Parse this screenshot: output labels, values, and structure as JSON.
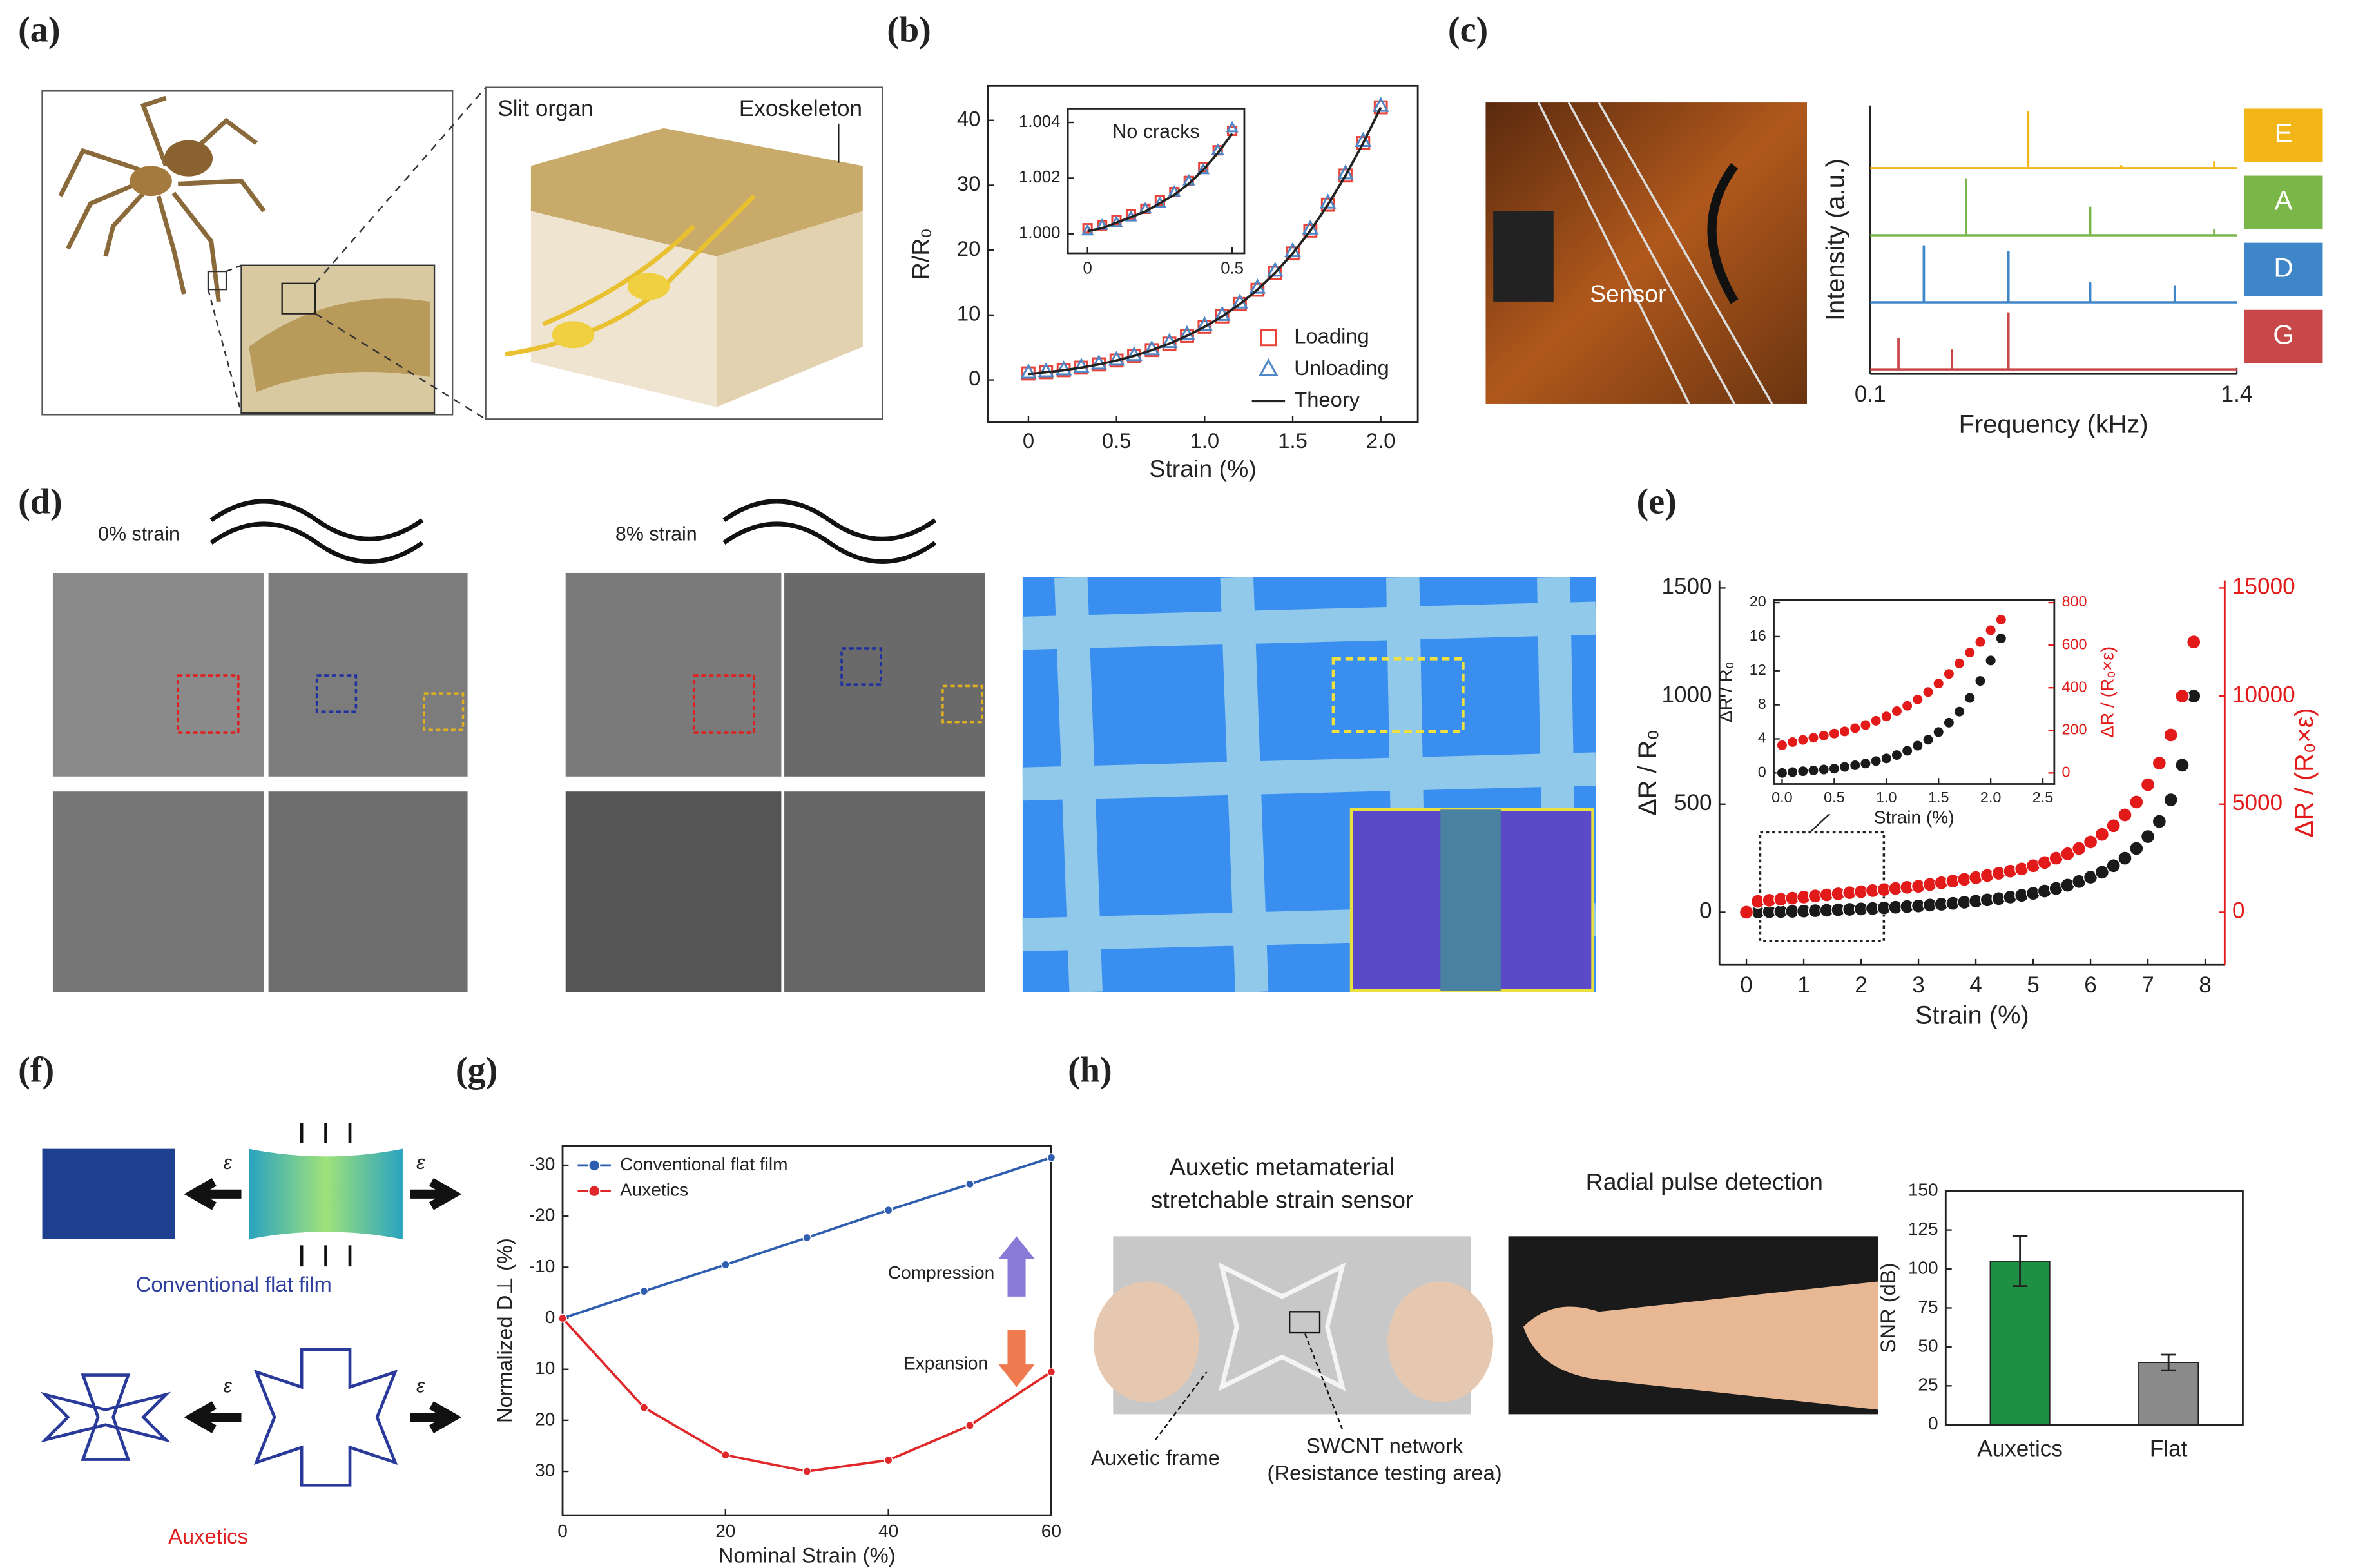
{
  "panel_labels": [
    "(a)",
    "(b)",
    "(c)",
    "(d)",
    "(e)",
    "(f)",
    "(g)",
    "(h)"
  ],
  "annotations": {
    "slit_organ": "Slit organ",
    "exoskeleton": "Exoskeleton",
    "sensor": "Sensor",
    "strain_0": "0% strain",
    "strain_8": "8% strain",
    "conventional": "Conventional flat film",
    "auxetics": "Auxetics",
    "epsilon": "ε",
    "compression": "Compression",
    "expansion": "Expansion",
    "sensor_title": [
      "Auxetic metamaterial",
      "stretchable strain sensor"
    ],
    "pulse": "Radial pulse detection",
    "frame": "Auxetic frame",
    "network": [
      "SWCNT network",
      "(Resistance testing area)"
    ]
  },
  "chart_data": [
    {
      "type": "line",
      "xlabel": "Strain (%)",
      "ylabel": "R/R₀",
      "x": [
        0,
        0.1,
        0.2,
        0.3,
        0.4,
        0.5,
        0.6,
        0.7,
        0.8,
        0.9,
        1,
        1.1,
        1.2,
        1.3,
        1.4,
        1.5,
        1.6,
        1.7,
        1.8,
        1.9,
        2
      ],
      "xlim": [
        -0.23,
        2.21
      ],
      "xticks": [
        0,
        0.5,
        {
          "value": 1,
          "label": "1.0"
        },
        1.5,
        {
          "value": 2,
          "label": "2.0"
        }
      ],
      "ylim": [
        -6.5,
        45.3
      ],
      "yticks": [
        0,
        10,
        20,
        30,
        40
      ],
      "legend": "lower right",
      "series": [
        {
          "name": "Loading",
          "color": "#e8443a",
          "marker": "square",
          "values": [
            1,
            1.2,
            1.5,
            1.9,
            2.4,
            3,
            3.7,
            4.6,
            5.6,
            6.8,
            8.2,
            9.8,
            11.7,
            13.9,
            16.5,
            19.5,
            23,
            27,
            31.5,
            36.5,
            42
          ]
        },
        {
          "name": "Unloading",
          "color": "#4f86c6",
          "marker": "triangle",
          "values": [
            1.1,
            1.3,
            1.6,
            2,
            2.5,
            3.1,
            3.8,
            4.7,
            5.8,
            7,
            8.4,
            10,
            11.9,
            14.2,
            16.8,
            19.8,
            23.3,
            27.3,
            31.8,
            36.8,
            42.2
          ]
        },
        {
          "name": "Theory",
          "color": "#222222",
          "marker": "none",
          "line": true,
          "values": [
            0.9,
            1.2,
            1.5,
            1.9,
            2.4,
            3,
            3.7,
            4.6,
            5.6,
            6.8,
            8.2,
            9.8,
            11.7,
            13.9,
            16.5,
            19.5,
            23,
            27,
            31.5,
            36.5,
            42
          ]
        }
      ]
    },
    {
      "type": "line",
      "title": "No cracks",
      "x": [
        0,
        0.05,
        0.1,
        0.15,
        0.2,
        0.25,
        0.3,
        0.35,
        0.4,
        0.45,
        0.5
      ],
      "xlim": [
        -0.068,
        0.542
      ],
      "xticks": [
        0,
        0.5
      ],
      "ylim": [
        0.9993,
        1.0045
      ],
      "yticks": [
        {
          "value": 1,
          "label": "1.000"
        },
        {
          "value": 1.002,
          "label": "1.002"
        },
        {
          "value": 1.004,
          "label": "1.004"
        }
      ],
      "series": [
        {
          "color": "#e8443a",
          "marker": "square",
          "values": [
            1.0002,
            1.0003,
            1.0005,
            1.0007,
            1.0009,
            1.0012,
            1.0015,
            1.0019,
            1.0024,
            1.003,
            1.0037
          ]
        },
        {
          "color": "#4f86c6",
          "marker": "triangle",
          "values": [
            1.0001,
            1.0003,
            1.0004,
            1.0006,
            1.0009,
            1.0011,
            1.0015,
            1.0019,
            1.0023,
            1.003,
            1.0038
          ]
        },
        {
          "color": "#222222",
          "marker": "none",
          "line": true,
          "values": [
            1.0001,
            1.0002,
            1.0004,
            1.0006,
            1.0008,
            1.0011,
            1.0014,
            1.0018,
            1.0023,
            1.0029,
            1.0036
          ]
        }
      ]
    },
    {
      "type": "spectrum",
      "xlabel": "Frequency (kHz)",
      "ylabel": "Intensity (a.u.)",
      "xlim": [
        0.1,
        1.4
      ],
      "xticks": [
        0.1,
        1.4
      ],
      "series": [
        {
          "name": "E",
          "color": "#f2b619",
          "x": [
            0.66,
            0.99,
            1.32
          ],
          "values": [
            1,
            0.05,
            0.12
          ]
        },
        {
          "name": "A",
          "color": "#7ab648",
          "x": [
            0.44,
            0.88,
            1.32
          ],
          "values": [
            1,
            0.5,
            0.1
          ]
        },
        {
          "name": "D",
          "color": "#3f86c8",
          "x": [
            0.29,
            0.59,
            0.88,
            1.18
          ],
          "values": [
            1,
            0.9,
            0.35,
            0.3
          ]
        },
        {
          "name": "G",
          "color": "#c8484a",
          "x": [
            0.2,
            0.39,
            0.59
          ],
          "values": [
            0.55,
            0.35,
            1
          ]
        }
      ]
    },
    {
      "type": "line",
      "xlabel": "Strain (%)",
      "ylabel": "ΔR / R₀",
      "y2label": "ΔR / (R₀×ε)",
      "x": [
        0,
        0.2,
        0.4,
        0.6,
        0.8,
        1,
        1.2,
        1.4,
        1.6,
        1.8,
        2,
        2.2,
        2.4,
        2.6,
        2.8,
        3,
        3.2,
        3.4,
        3.6,
        3.8,
        4,
        4.2,
        4.4,
        4.6,
        4.8,
        5,
        5.2,
        5.4,
        5.6,
        5.8,
        6,
        6.2,
        6.4,
        6.6,
        6.8,
        7,
        7.2,
        7.4,
        7.6,
        7.8
      ],
      "xlim": [
        -0.47,
        8.34
      ],
      "xticks": [
        0,
        1,
        2,
        3,
        4,
        5,
        6,
        7,
        8
      ],
      "ylim": [
        -244,
        1535
      ],
      "yticks": [
        0,
        500,
        1000,
        1500
      ],
      "y2lim": [
        -2440,
        15350
      ],
      "y2ticks": [
        0,
        5000,
        10000,
        15000
      ],
      "series": [
        {
          "color": "#1a1a1a",
          "marker": "circle",
          "values": [
            0,
            1,
            2,
            3,
            4,
            5,
            7,
            9,
            11,
            13,
            15,
            17,
            20,
            23,
            26,
            29,
            33,
            37,
            41,
            46,
            51,
            57,
            63,
            70,
            78,
            87,
            98,
            110,
            125,
            142,
            162,
            185,
            215,
            250,
            295,
            350,
            420,
            520,
            680,
            1000
          ]
        },
        {
          "color": "#e31a1a",
          "marker": "circle",
          "axis": "y2",
          "values": [
            0,
            500,
            550,
            600,
            650,
            700,
            750,
            800,
            850,
            900,
            950,
            1000,
            1050,
            1100,
            1150,
            1200,
            1280,
            1360,
            1440,
            1520,
            1600,
            1700,
            1800,
            1900,
            2000,
            2150,
            2300,
            2500,
            2700,
            2950,
            3250,
            3600,
            4000,
            4500,
            5100,
            5900,
            6900,
            8200,
            10000,
            12500
          ]
        }
      ]
    },
    {
      "type": "line",
      "xlabel": "Strain (%)",
      "ylabel": "ΔR / R₀",
      "y2label": "ΔR / (R₀×ε)",
      "x": [
        0,
        0.1,
        0.2,
        0.3,
        0.4,
        0.5,
        0.6,
        0.7,
        0.8,
        0.9,
        1,
        1.1,
        1.2,
        1.3,
        1.4,
        1.5,
        1.6,
        1.7,
        1.8,
        1.9,
        2,
        2.1
      ],
      "xlim": [
        -0.08,
        2.61
      ],
      "xticks": [
        {
          "value": 0,
          "label": "0.0"
        },
        0.5,
        {
          "value": 1,
          "label": "1.0"
        },
        1.5,
        {
          "value": 2,
          "label": "2.0"
        },
        2.5
      ],
      "ylim": [
        -1.3,
        20.3
      ],
      "yticks": [
        0,
        4,
        8,
        12,
        16,
        20
      ],
      "y2lim": [
        -52,
        812
      ],
      "y2ticks": [
        0,
        200,
        400,
        600,
        800
      ],
      "series": [
        {
          "color": "#1a1a1a",
          "marker": "circle",
          "values": [
            0,
            0.1,
            0.2,
            0.3,
            0.4,
            0.5,
            0.7,
            0.9,
            1.1,
            1.4,
            1.7,
            2.1,
            2.6,
            3.2,
            3.9,
            4.8,
            5.9,
            7.2,
            8.8,
            10.8,
            13.2,
            15.8
          ]
        },
        {
          "color": "#e31a1a",
          "marker": "circle",
          "axis": "y2",
          "values": [
            130,
            145,
            155,
            165,
            175,
            185,
            195,
            210,
            225,
            245,
            265,
            290,
            315,
            345,
            380,
            420,
            465,
            515,
            565,
            615,
            670,
            720
          ]
        }
      ]
    },
    {
      "type": "line",
      "xlabel": "Nominal Strain (%)",
      "ylabel": "Normalized D⊥ (%)",
      "x": [
        0,
        10,
        20,
        30,
        40,
        50,
        60
      ],
      "xlim": [
        0,
        60
      ],
      "xticks": [
        0,
        20,
        40,
        60
      ],
      "ylim": [
        38.6,
        -33.8
      ],
      "yticks": [
        -30,
        -20,
        -10,
        0,
        10,
        20,
        30
      ],
      "legend": "upper left",
      "series": [
        {
          "name": "Conventional flat film",
          "color": "#2f5db0",
          "marker": "circle",
          "line": true,
          "values": [
            0,
            -5.3,
            -10.5,
            -15.8,
            -21.2,
            -26.3,
            -31.5
          ]
        },
        {
          "name": "Auxetics",
          "color": "#e0282a",
          "marker": "circle",
          "line": true,
          "values": [
            0,
            17.5,
            26.8,
            30,
            27.8,
            21,
            10.5
          ]
        }
      ]
    },
    {
      "type": "bar",
      "ylabel": "SNR (dB)",
      "categories": [
        "Auxetics",
        "Flat"
      ],
      "values": [
        105,
        40
      ],
      "errors": [
        16,
        5
      ],
      "colors": [
        "#1f8f43",
        "#8a8a8a"
      ],
      "ylim": [
        0,
        150
      ],
      "yticks": [
        0,
        25,
        50,
        75,
        100,
        125,
        150
      ]
    }
  ]
}
